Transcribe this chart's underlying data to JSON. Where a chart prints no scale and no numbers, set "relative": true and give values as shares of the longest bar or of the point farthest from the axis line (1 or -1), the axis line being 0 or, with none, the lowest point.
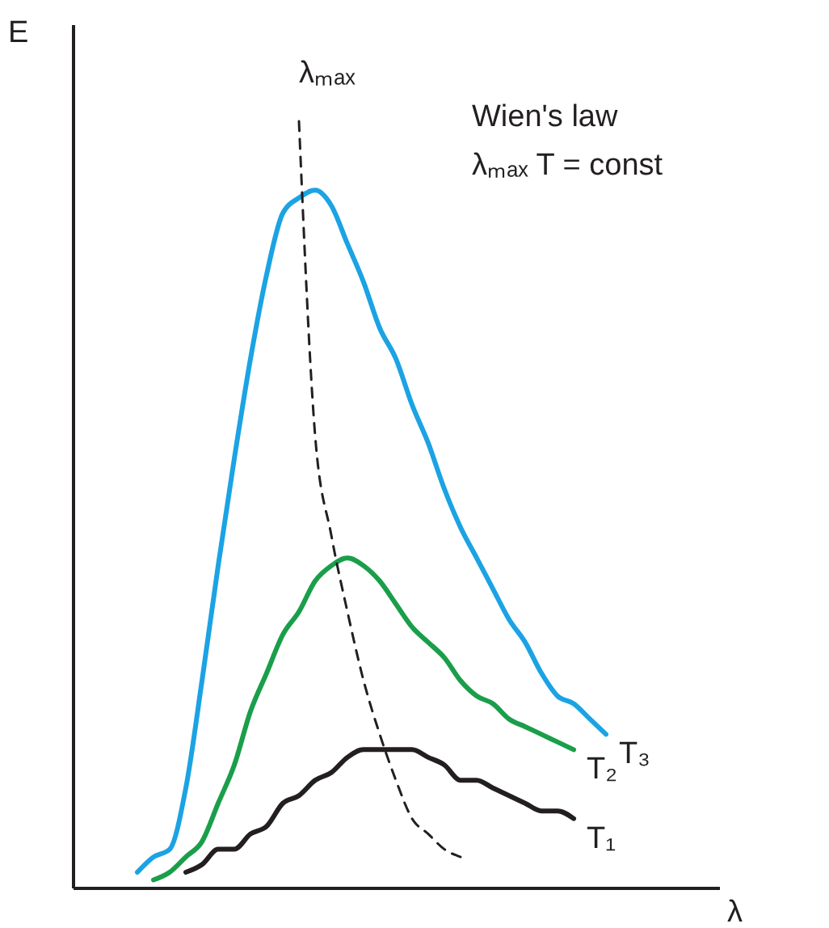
{
  "chart_data": {
    "type": "line",
    "relative": true,
    "xlabel": "λ",
    "ylabel": "E",
    "categories": [
      null,
      null,
      null,
      null,
      null,
      null,
      null,
      null,
      null,
      null,
      null,
      null,
      null,
      null,
      null,
      null,
      null,
      null,
      null,
      null,
      null,
      null,
      null,
      null,
      null,
      null,
      null,
      null,
      null,
      null
    ],
    "series": [
      {
        "name": "T₃",
        "color": "#1ba3e3",
        "values": [
          0.02,
          0.04,
          0.05,
          0.13,
          0.27,
          0.42,
          0.56,
          0.69,
          0.8,
          0.88,
          0.9,
          0.91,
          0.89,
          0.84,
          0.79,
          0.73,
          0.69,
          0.63,
          0.58,
          0.52,
          0.47,
          0.43,
          0.39,
          0.35,
          0.32,
          0.28,
          0.25,
          0.24,
          0.22,
          0.2
        ]
      },
      {
        "name": "T₂",
        "color": "#1a9e4a",
        "values": [
          null,
          0.01,
          0.02,
          0.04,
          0.06,
          0.11,
          0.16,
          0.23,
          0.28,
          0.33,
          0.36,
          0.4,
          0.42,
          0.43,
          0.42,
          0.4,
          0.37,
          0.34,
          0.32,
          0.3,
          0.27,
          0.25,
          0.24,
          0.22,
          0.21,
          0.2,
          0.19,
          0.18,
          null,
          null
        ]
      },
      {
        "name": "T₁",
        "color": "#231f20",
        "values": [
          null,
          null,
          null,
          0.02,
          0.03,
          0.05,
          0.05,
          0.07,
          0.08,
          0.11,
          0.12,
          0.14,
          0.15,
          0.17,
          0.18,
          0.18,
          0.18,
          0.18,
          0.17,
          0.16,
          0.14,
          0.14,
          0.13,
          0.12,
          0.11,
          0.1,
          0.1,
          0.09,
          null,
          null
        ]
      },
      {
        "color": "#231f20",
        "line_style": "dashed",
        "values": [
          null,
          null,
          null,
          null,
          null,
          null,
          null,
          null,
          null,
          null,
          1.0,
          0.59,
          0.46,
          0.36,
          0.27,
          0.2,
          0.14,
          0.09,
          0.07,
          0.05,
          0.04,
          null,
          null,
          null,
          null,
          null,
          null,
          null,
          null,
          null
        ]
      }
    ],
    "annotations": [
      "λₘₐₓ",
      "Wien's law",
      "λₘₐₓ T = const"
    ],
    "legend": false,
    "line_style": "solid"
  }
}
